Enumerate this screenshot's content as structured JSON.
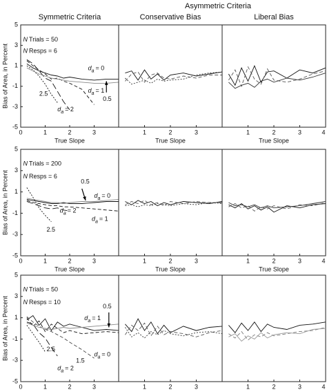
{
  "figure_title": "Asymmetric Criteria",
  "chart_data": [
    {
      "type": "line",
      "title": "Symmetric Criteria",
      "xlabel": "True Slope",
      "ylabel": "Bias of Area, in Percent",
      "x": [
        0.25,
        0.5,
        0.75,
        1,
        1.25,
        1.5,
        1.75,
        2,
        2.5,
        3,
        3.5,
        4
      ],
      "xlim": [
        0,
        4
      ],
      "ylim": [
        -5,
        5
      ],
      "xticks": [
        0,
        1,
        2,
        3
      ],
      "yticks": [
        -5,
        -3,
        -1,
        1,
        3,
        5
      ],
      "series": [
        {
          "color": "#111111",
          "dash": "solid",
          "values": [
            1.2,
            0.8,
            0.5,
            0.3,
            0.1,
            0.0,
            -0.2,
            -0.1,
            -0.3,
            -0.4,
            -0.3,
            -0.3
          ]
        },
        {
          "color": "#111111",
          "dash": "dashed",
          "values": [
            1.5,
            1.0,
            0.6,
            0.2,
            -0.3,
            -0.2,
            -0.5,
            -0.7,
            -1.3,
            -2.8,
            null,
            null
          ]
        },
        {
          "color": "#111111",
          "dash": "long-dashed",
          "values": [
            1.6,
            1.2,
            0.5,
            -0.2,
            -0.5,
            -1.5,
            -2.5,
            -3.3,
            null,
            null,
            null,
            null
          ]
        },
        {
          "color": "#111111",
          "dash": "dotted",
          "values": [
            1.0,
            0.6,
            0.0,
            -0.8,
            -1.8,
            -2.6,
            null,
            null,
            null,
            null,
            null,
            null
          ]
        },
        {
          "color": "#888888",
          "dash": "solid",
          "values": [
            0.8,
            0.5,
            0.2,
            0.0,
            -0.2,
            -0.3,
            -0.4,
            -0.5,
            -0.6,
            -0.7,
            -0.7,
            -0.6
          ]
        }
      ],
      "annotations": [
        {
          "italic": "N",
          "text": "Trials = 50"
        },
        {
          "italic": "N",
          "text": "Resps = 6"
        },
        {
          "italic": "d",
          "sub": "a",
          "text": "= 0"
        },
        {
          "italic": "d",
          "sub": "a",
          "text": "= 1"
        },
        {
          "italic": "d",
          "sub": "a",
          "text": "= 2"
        },
        {
          "text": "2.5"
        },
        {
          "text": "0.5"
        }
      ]
    },
    {
      "type": "line",
      "title": "Conservative Bias",
      "xlabel": "True Slope",
      "x": [
        0.25,
        0.5,
        0.75,
        1,
        1.25,
        1.5,
        1.75,
        2,
        2.5,
        3,
        3.5,
        4
      ],
      "xlim": [
        0,
        4
      ],
      "ylim": [
        -5,
        5
      ],
      "xticks": [
        1,
        2,
        3
      ],
      "series": [
        {
          "color": "#111111",
          "dash": "solid",
          "values": [
            0.3,
            0.5,
            -0.4,
            0.6,
            -0.3,
            0.2,
            -0.4,
            0.1,
            0.3,
            0.0,
            0.2,
            0.4
          ]
        },
        {
          "color": "#555555",
          "dash": "dashed",
          "values": [
            -0.5,
            0.2,
            0.4,
            -0.6,
            0.1,
            0.3,
            -0.2,
            -0.3,
            0.0,
            -0.2,
            0.1,
            0.1
          ]
        },
        {
          "color": "#333333",
          "dash": "dotted",
          "values": [
            -0.2,
            -0.8,
            -0.6,
            -0.4,
            -0.7,
            -0.3,
            -0.5,
            -0.4,
            -0.3,
            0.1,
            0.3,
            0.4
          ]
        }
      ]
    },
    {
      "type": "line",
      "title": "Liberal Bias",
      "xlabel": "True Slope",
      "x": [
        0.25,
        0.5,
        0.75,
        1,
        1.25,
        1.5,
        1.75,
        2,
        2.5,
        3,
        3.5,
        4
      ],
      "xlim": [
        0,
        4
      ],
      "ylim": [
        -5,
        5
      ],
      "xticks": [
        1,
        2,
        3,
        4
      ],
      "series": [
        {
          "color": "#111111",
          "dash": "solid",
          "values": [
            0.2,
            -0.9,
            0.8,
            -0.5,
            1.0,
            -0.6,
            0.4,
            0.5,
            -0.2,
            0.6,
            0.3,
            0.8
          ]
        },
        {
          "color": "#555555",
          "dash": "dashed",
          "values": [
            -0.4,
            0.6,
            -1.0,
            0.9,
            -0.3,
            -0.8,
            0.7,
            -0.4,
            -0.6,
            -0.3,
            0.2,
            0.5
          ]
        },
        {
          "color": "#333333",
          "dash": "solid",
          "values": [
            -0.6,
            -1.2,
            -0.9,
            -0.7,
            -1.1,
            -0.5,
            -0.3,
            -0.6,
            -0.2,
            -0.4,
            -0.1,
            0.3
          ]
        }
      ]
    },
    {
      "type": "line",
      "xlabel": "True Slope",
      "ylabel": "Bias of Area, in Percent",
      "x": [
        0.25,
        0.5,
        0.75,
        1,
        1.25,
        1.5,
        1.75,
        2,
        2.5,
        3,
        3.5,
        4
      ],
      "xlim": [
        0,
        4
      ],
      "ylim": [
        -5,
        5
      ],
      "xticks": [
        0,
        1,
        2,
        3
      ],
      "yticks": [
        -5,
        -3,
        -1,
        1,
        3,
        5
      ],
      "series": [
        {
          "color": "#111111",
          "dash": "solid",
          "values": [
            0.3,
            0.2,
            0.1,
            0.0,
            -0.1,
            -0.1,
            0.0,
            -0.1,
            -0.1,
            0.0,
            0.1,
            0.1
          ]
        },
        {
          "color": "#888888",
          "dash": "solid",
          "values": [
            0.4,
            0.3,
            0.2,
            0.1,
            0.0,
            0.0,
            -0.1,
            0.0,
            0.1,
            0.1,
            0.2,
            0.3
          ]
        },
        {
          "color": "#111111",
          "dash": "dashed",
          "values": [
            0.2,
            0.0,
            -0.1,
            -0.2,
            -0.3,
            -0.3,
            -0.4,
            -0.4,
            -0.5,
            -0.6,
            -0.7,
            -0.8
          ]
        },
        {
          "color": "#111111",
          "dash": "long-dashed",
          "values": [
            0.1,
            -0.1,
            -0.3,
            -0.5,
            -0.6,
            -0.5,
            -0.7,
            -0.8,
            null,
            null,
            null,
            null
          ]
        },
        {
          "color": "#111111",
          "dash": "dotted",
          "values": [
            1.4,
            0.5,
            -0.5,
            -1.2,
            -1.8,
            null,
            null,
            null,
            null,
            null,
            null,
            null
          ]
        }
      ],
      "annotations": [
        {
          "italic": "N",
          "text": "Trials = 200"
        },
        {
          "italic": "N",
          "text": "Resps = 6"
        },
        {
          "text": "0.5"
        },
        {
          "italic": "d",
          "sub": "a",
          "text": "= 0"
        },
        {
          "italic": "d",
          "sub": "a",
          "text": "= 2"
        },
        {
          "text": "2.5"
        },
        {
          "italic": "d",
          "sub": "a",
          "text": "= 1"
        }
      ]
    },
    {
      "type": "line",
      "xlabel": "True Slope",
      "x": [
        0.25,
        0.5,
        0.75,
        1,
        1.25,
        1.5,
        1.75,
        2,
        2.5,
        3,
        3.5,
        4
      ],
      "xlim": [
        0,
        4
      ],
      "ylim": [
        -5,
        5
      ],
      "xticks": [
        1,
        2,
        3
      ],
      "series": [
        {
          "color": "#111111",
          "dash": "solid",
          "values": [
            0.1,
            -0.2,
            0.2,
            -0.1,
            0.1,
            -0.3,
            0.0,
            -0.2,
            0.1,
            0.0,
            -0.1,
            0.1
          ]
        },
        {
          "color": "#555555",
          "dash": "dashed",
          "values": [
            -0.2,
            0.1,
            -0.1,
            0.2,
            -0.2,
            0.0,
            -0.3,
            0.1,
            -0.1,
            0.1,
            0.0,
            0.0
          ]
        },
        {
          "color": "#333333",
          "dash": "dotted",
          "values": [
            -0.3,
            -0.2,
            -0.4,
            -0.2,
            -0.3,
            -0.1,
            -0.2,
            -0.3,
            -0.1,
            -0.2,
            0.0,
            -0.1
          ]
        }
      ]
    },
    {
      "type": "line",
      "xlabel": "True Slope",
      "x": [
        0.25,
        0.5,
        0.75,
        1,
        1.25,
        1.5,
        1.75,
        2,
        2.5,
        3,
        3.5,
        4
      ],
      "xlim": [
        0,
        4
      ],
      "ylim": [
        -5,
        5
      ],
      "xticks": [
        1,
        2,
        3,
        4
      ],
      "series": [
        {
          "color": "#111111",
          "dash": "solid",
          "values": [
            -0.2,
            -0.5,
            -0.1,
            -0.6,
            -0.3,
            -0.7,
            -0.4,
            -0.9,
            -0.3,
            -0.5,
            -0.2,
            -0.1
          ]
        },
        {
          "color": "#555555",
          "dash": "dashed",
          "values": [
            -0.4,
            -0.1,
            -0.5,
            -0.3,
            -0.8,
            -0.4,
            -0.6,
            -0.3,
            -0.6,
            -0.2,
            -0.3,
            0.0
          ]
        },
        {
          "color": "#333333",
          "dash": "solid",
          "values": [
            0.0,
            -0.3,
            -0.2,
            -0.4,
            -0.2,
            -0.5,
            -0.3,
            -0.5,
            -0.4,
            -0.3,
            -0.1,
            0.1
          ]
        }
      ]
    },
    {
      "type": "line",
      "xlabel": "True Slope",
      "ylabel": "Bias of Area, in Percent",
      "x": [
        0.25,
        0.5,
        0.75,
        1,
        1.25,
        1.5,
        1.75,
        2,
        2.5,
        3,
        3.5,
        4
      ],
      "xlim": [
        0,
        4
      ],
      "ylim": [
        -5,
        5
      ],
      "xticks": [
        0,
        1,
        2,
        3
      ],
      "yticks": [
        -5,
        -3,
        -1,
        1,
        3,
        5
      ],
      "series": [
        {
          "color": "#111111",
          "dash": "solid",
          "values": [
            0.8,
            1.2,
            0.3,
            0.9,
            -0.2,
            0.6,
            0.2,
            0.4,
            0.1,
            -0.2,
            -0.1,
            -0.2
          ]
        },
        {
          "color": "#111111",
          "dash": "dashed",
          "values": [
            1.0,
            0.2,
            0.7,
            -0.3,
            0.4,
            0.0,
            -0.4,
            -0.2,
            -0.5,
            -0.4,
            -0.3,
            -0.4
          ]
        },
        {
          "color": "#111111",
          "dash": "long-dashed",
          "values": [
            0.6,
            0.4,
            -0.4,
            -0.9,
            -1.8,
            -2.6,
            null,
            null,
            null,
            null,
            null,
            null
          ]
        },
        {
          "color": "#111111",
          "dash": "dotted",
          "values": [
            0.3,
            -0.5,
            -1.3,
            -2.2,
            null,
            null,
            null,
            null,
            null,
            null,
            null,
            null
          ]
        },
        {
          "color": "#444444",
          "dash": "dashed",
          "values": [
            1.1,
            0.6,
            0.2,
            -0.1,
            -0.3,
            -0.6,
            -0.9,
            -1.3,
            -2.0,
            -2.8,
            null,
            null
          ]
        },
        {
          "color": "#888888",
          "dash": "solid",
          "values": [
            0.5,
            0.3,
            0.1,
            0.0,
            -0.1,
            0.0,
            0.1,
            0.0,
            0.1,
            0.2,
            0.3,
            0.4
          ]
        }
      ],
      "annotations": [
        {
          "italic": "N",
          "text": "Trials = 50"
        },
        {
          "italic": "N",
          "text": "Resps = 10"
        },
        {
          "italic": "d",
          "sub": "a",
          "text": "= 1"
        },
        {
          "text": "0.5"
        },
        {
          "text": "2.5"
        },
        {
          "text": "1.5"
        },
        {
          "italic": "d",
          "sub": "a",
          "text": "= 0"
        },
        {
          "italic": "d",
          "sub": "a",
          "text": "= 2"
        }
      ]
    },
    {
      "type": "line",
      "xlabel": "True Slope",
      "x": [
        0.25,
        0.5,
        0.75,
        1,
        1.25,
        1.5,
        1.75,
        2,
        2.5,
        3,
        3.5,
        4
      ],
      "xlim": [
        0,
        4
      ],
      "ylim": [
        -5,
        5
      ],
      "xticks": [
        1,
        2,
        3
      ],
      "series": [
        {
          "color": "#111111",
          "dash": "solid",
          "values": [
            0.4,
            -0.3,
            0.9,
            -0.2,
            0.6,
            -0.5,
            0.3,
            -0.4,
            0.2,
            -0.2,
            0.1,
            0.2
          ]
        },
        {
          "color": "#555555",
          "dash": "dashed",
          "values": [
            -0.6,
            0.3,
            -0.2,
            0.5,
            -0.7,
            0.2,
            -0.6,
            -0.3,
            -0.5,
            -0.8,
            -0.4,
            -0.2
          ]
        },
        {
          "color": "#333333",
          "dash": "dotted",
          "values": [
            0.1,
            -0.8,
            -0.4,
            -0.9,
            -0.3,
            -0.6,
            -0.2,
            -0.5,
            -0.7,
            -0.4,
            -0.3,
            -0.5
          ]
        }
      ]
    },
    {
      "type": "line",
      "xlabel": "True Slope",
      "x": [
        0.25,
        0.5,
        0.75,
        1,
        1.25,
        1.5,
        1.75,
        2,
        2.5,
        3,
        3.5,
        4
      ],
      "xlim": [
        0,
        4
      ],
      "ylim": [
        -5,
        5
      ],
      "xticks": [
        1,
        2,
        3,
        4
      ],
      "series": [
        {
          "color": "#111111",
          "dash": "solid",
          "values": [
            0.3,
            -0.4,
            0.5,
            -0.2,
            0.6,
            -0.3,
            0.4,
            0.1,
            -0.1,
            0.3,
            0.4,
            0.6
          ]
        },
        {
          "color": "#777777",
          "dash": "dashed",
          "values": [
            -0.5,
            -0.9,
            -0.3,
            -1.1,
            -0.6,
            -0.8,
            -0.4,
            -0.7,
            -0.5,
            -0.3,
            -0.2,
            0.1
          ]
        },
        {
          "color": "#999999",
          "dash": "solid",
          "values": [
            -0.8,
            -0.5,
            -1.2,
            -0.7,
            -1.0,
            -0.4,
            -0.9,
            -0.6,
            -0.4,
            -0.5,
            -0.1,
            0.0
          ]
        }
      ]
    }
  ]
}
